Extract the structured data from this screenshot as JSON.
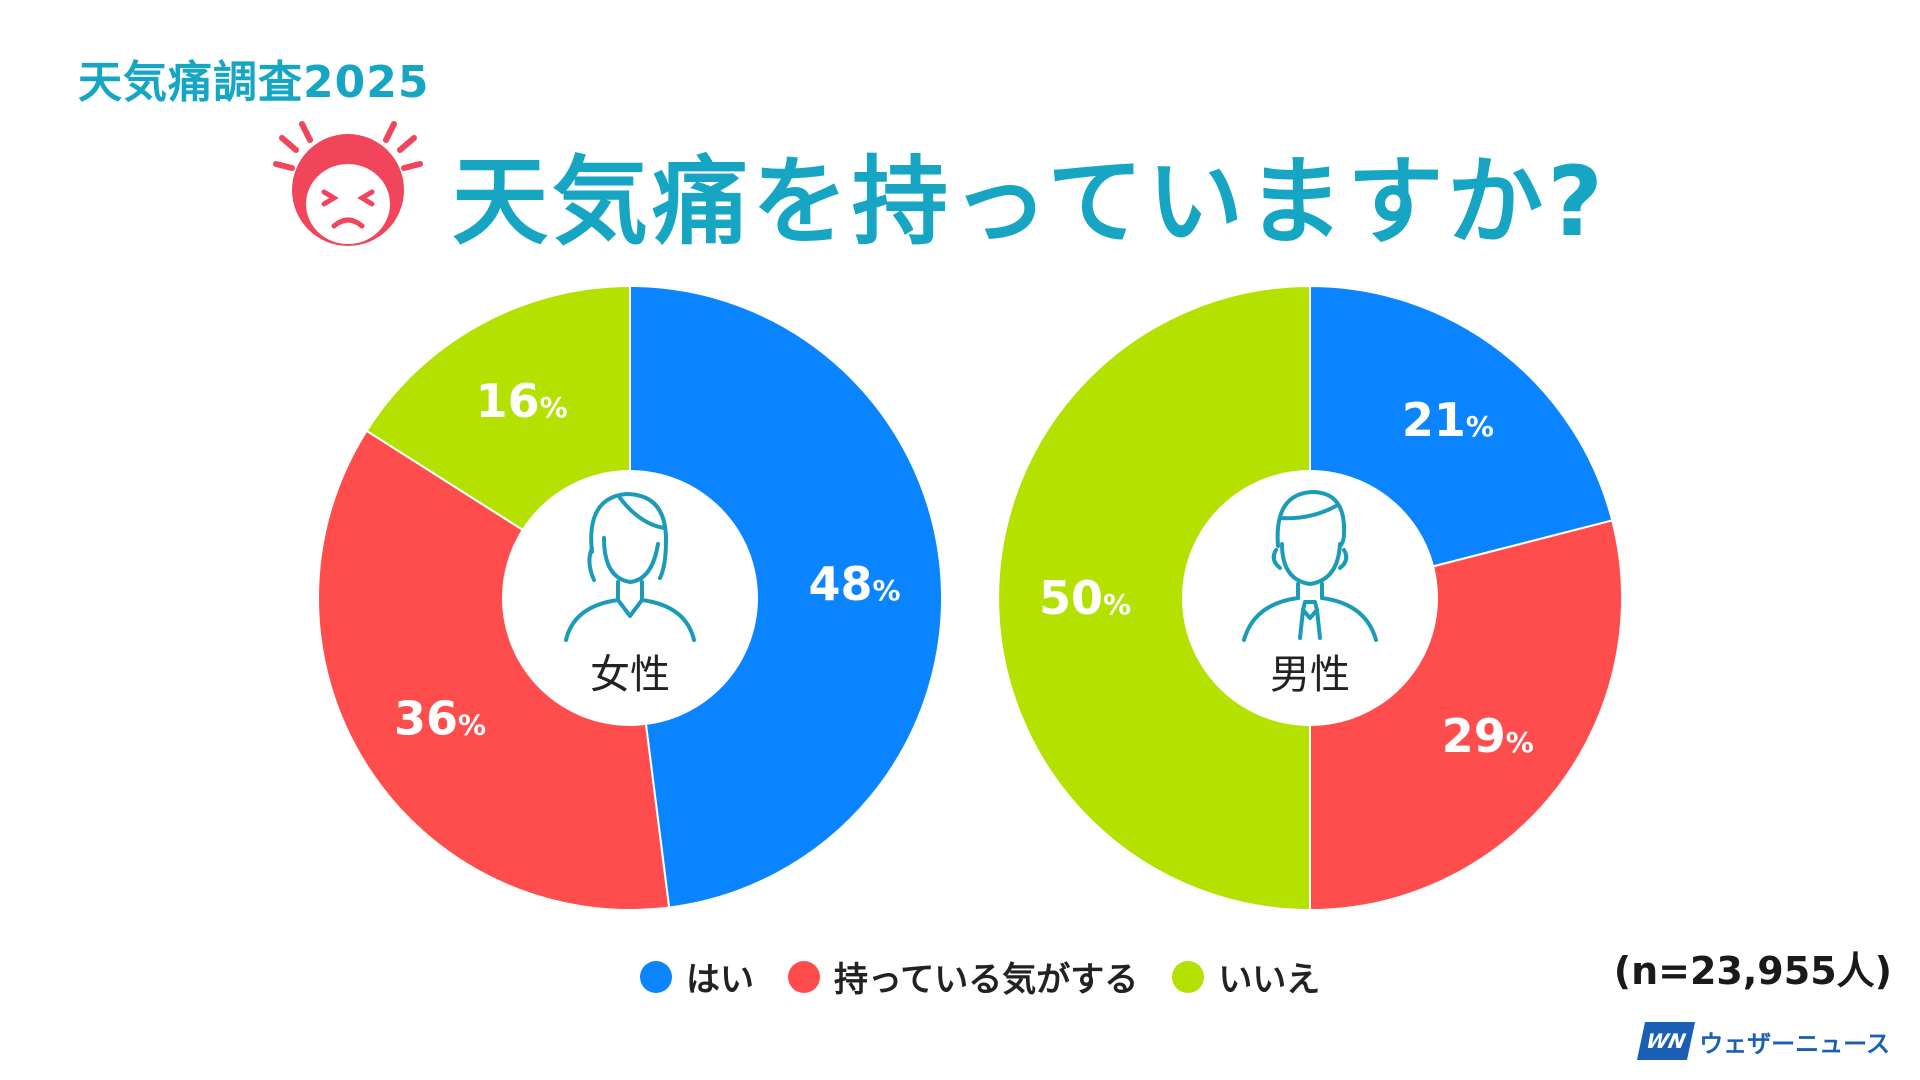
{
  "header": {
    "kicker": "天気痛調査2025",
    "title": "天気痛を持っていますか?",
    "icon": "pained-face-icon"
  },
  "colors": {
    "accent": "#16a6c4",
    "yes": "#0a84ff",
    "maybe": "#ff4d4d",
    "no": "#b4e100",
    "face": "#f0455a"
  },
  "legend": [
    {
      "label": "はい",
      "color": "#0a84ff"
    },
    {
      "label": "持っている気がする",
      "color": "#ff4d4d"
    },
    {
      "label": "いいえ",
      "color": "#b4e100"
    }
  ],
  "sample_note": "(n=23,955人)",
  "logo": {
    "mark": "WN",
    "text": "ウェザーニュース"
  },
  "chart_data": [
    {
      "type": "pie",
      "center_label": "女性",
      "icon": "woman-icon",
      "categories": [
        "はい",
        "持っている気がする",
        "いいえ"
      ],
      "values": [
        48,
        36,
        16
      ],
      "value_labels": [
        "48",
        "36",
        "16"
      ],
      "unit": "%"
    },
    {
      "type": "pie",
      "center_label": "男性",
      "icon": "man-icon",
      "categories": [
        "はい",
        "持っている気がする",
        "いいえ"
      ],
      "values": [
        21,
        29,
        50
      ],
      "value_labels": [
        "21",
        "29",
        "50"
      ],
      "unit": "%"
    }
  ]
}
